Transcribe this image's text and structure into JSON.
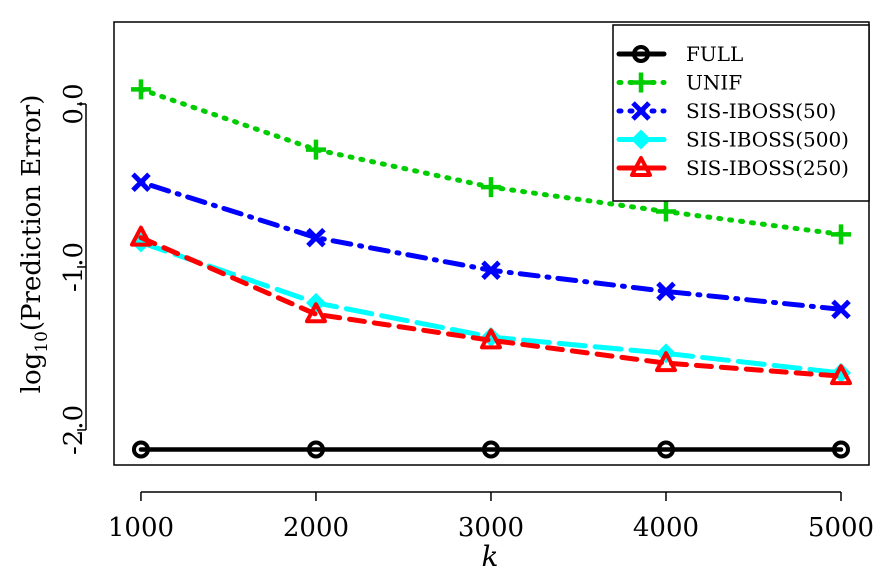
{
  "chart_data": {
    "type": "line",
    "title": "",
    "xlabel": "k",
    "ylabel_main": "log",
    "ylabel_sub": "10",
    "ylabel_rest": "(Prediction Error)",
    "x": [
      1000,
      2000,
      3000,
      4000,
      5000
    ],
    "x_ticks": [
      "1000",
      "2000",
      "3000",
      "4000",
      "5000"
    ],
    "y_ticks": [
      {
        "value": 0.0,
        "label": "0.0"
      },
      {
        "value": -1.0,
        "label": "-1.0"
      },
      {
        "value": -2.0,
        "label": "-2.0"
      }
    ],
    "xlim": [
      846,
      5160
    ],
    "ylim": [
      -2.215,
      0.503
    ],
    "grid": false,
    "legend_position": "top-right",
    "series": [
      {
        "name": "FULL",
        "color": "#000000",
        "marker": "circle",
        "line": "solid",
        "values": [
          -2.12,
          -2.12,
          -2.12,
          -2.12,
          -2.12
        ]
      },
      {
        "name": "UNIF",
        "color": "#00cd00",
        "marker": "plus",
        "line": "dotted",
        "values": [
          0.09,
          -0.28,
          -0.51,
          -0.66,
          -0.8
        ]
      },
      {
        "name": "SIS-IBOSS(50)",
        "color": "#0000ff",
        "marker": "cross",
        "line": "dotdash",
        "values": [
          -0.48,
          -0.82,
          -1.02,
          -1.15,
          -1.26
        ]
      },
      {
        "name": "SIS-IBOSS(500)",
        "color": "#00ffff",
        "marker": "diamond",
        "line": "longdash",
        "values": [
          -0.85,
          -1.22,
          -1.43,
          -1.53,
          -1.65
        ]
      },
      {
        "name": "SIS-IBOSS(250)",
        "color": "#ff0000",
        "marker": "triangle",
        "line": "dashed",
        "values": [
          -0.82,
          -1.29,
          -1.45,
          -1.59,
          -1.67
        ]
      }
    ]
  }
}
